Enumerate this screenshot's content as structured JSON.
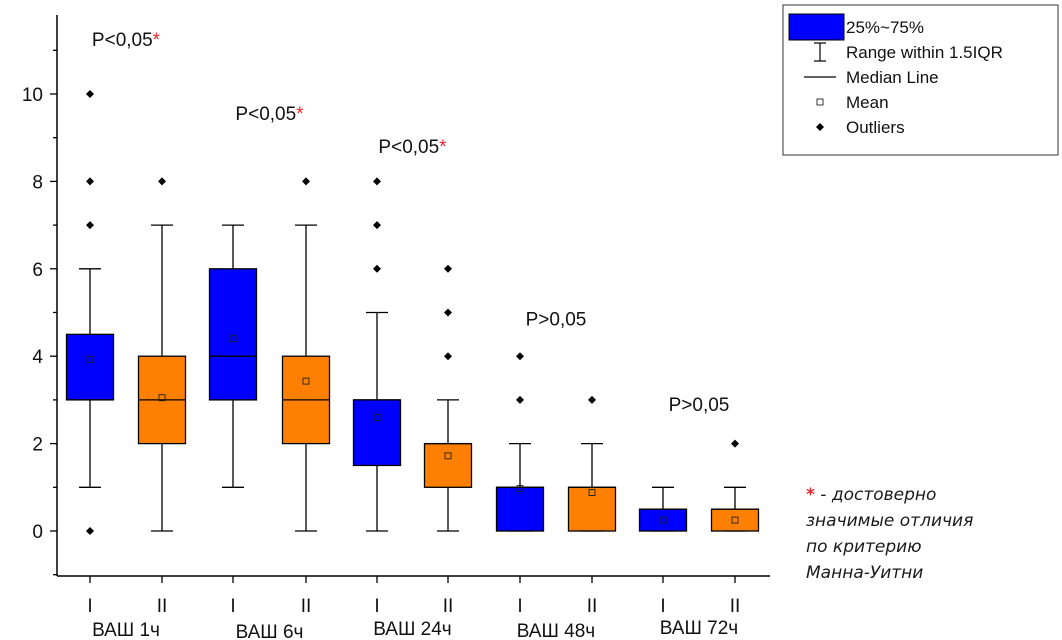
{
  "chart_data": {
    "type": "box",
    "ylim": [
      -1,
      11
    ],
    "yticks": [
      0,
      2,
      4,
      6,
      8,
      10
    ],
    "colors": {
      "I": "#0000ff",
      "II": "#ff8000"
    },
    "groups": [
      "ВАШ 1ч",
      "ВАШ 6ч",
      "ВАШ 24ч",
      "ВАШ 48ч",
      "ВАШ 72ч"
    ],
    "sub_labels": [
      "I",
      "II"
    ],
    "boxes": [
      {
        "group": 0,
        "sub": "I",
        "q1": 3,
        "median": 3,
        "q3": 4.5,
        "whisker_low": 1,
        "whisker_high": 6,
        "mean": 3.93,
        "outliers": [
          0,
          7,
          8,
          10
        ]
      },
      {
        "group": 0,
        "sub": "II",
        "q1": 2,
        "median": 3,
        "q3": 4,
        "whisker_low": 0,
        "whisker_high": 7,
        "mean": 3.05,
        "outliers": [
          8
        ]
      },
      {
        "group": 1,
        "sub": "I",
        "q1": 3,
        "median": 4,
        "q3": 6,
        "whisker_low": 1,
        "whisker_high": 7,
        "mean": 4.4,
        "outliers": []
      },
      {
        "group": 1,
        "sub": "II",
        "q1": 2,
        "median": 3,
        "q3": 4,
        "whisker_low": 0,
        "whisker_high": 7,
        "mean": 3.43,
        "outliers": [
          8
        ]
      },
      {
        "group": 2,
        "sub": "I",
        "q1": 1.5,
        "median": 3,
        "q3": 3,
        "whisker_low": 0,
        "whisker_high": 5,
        "mean": 2.6,
        "outliers": [
          6,
          7,
          8
        ]
      },
      {
        "group": 2,
        "sub": "II",
        "q1": 1,
        "median": 2,
        "q3": 2,
        "whisker_low": 0,
        "whisker_high": 3,
        "mean": 1.72,
        "outliers": [
          4,
          5,
          6
        ]
      },
      {
        "group": 3,
        "sub": "I",
        "q1": 0,
        "median": 1,
        "q3": 1,
        "whisker_low": 0,
        "whisker_high": 2,
        "mean": 0.97,
        "outliers": [
          3,
          4
        ]
      },
      {
        "group": 3,
        "sub": "II",
        "q1": 0,
        "median": 1,
        "q3": 1,
        "whisker_low": 0,
        "whisker_high": 2,
        "mean": 0.88,
        "outliers": [
          3
        ]
      },
      {
        "group": 4,
        "sub": "I",
        "q1": 0,
        "median": 0.5,
        "q3": 0.5,
        "whisker_low": 0,
        "whisker_high": 1,
        "mean": 0.25,
        "outliers": []
      },
      {
        "group": 4,
        "sub": "II",
        "q1": 0,
        "median": 0.5,
        "q3": 0.5,
        "whisker_low": 0,
        "whisker_high": 1,
        "mean": 0.25,
        "outliers": [
          2
        ]
      }
    ],
    "annotations": [
      {
        "group": 0,
        "text": "P<0,05",
        "star": "*",
        "y": 11.1
      },
      {
        "group": 1,
        "text": "P<0,05",
        "star": "*",
        "y": 9.4
      },
      {
        "group": 2,
        "text": "P<0,05",
        "star": "*",
        "y": 8.65
      },
      {
        "group": 3,
        "text": "P>0,05",
        "star": "",
        "y": 4.7
      },
      {
        "group": 4,
        "text": "P>0,05",
        "star": "",
        "y": 2.75
      }
    ],
    "legend": {
      "position": "top-right",
      "items": [
        {
          "symbol": "box",
          "label": "25%~75%"
        },
        {
          "symbol": "whisker",
          "label": "Range within 1.5IQR"
        },
        {
          "symbol": "line",
          "label": "Median Line"
        },
        {
          "symbol": "mean",
          "label": "Mean"
        },
        {
          "symbol": "outlier",
          "label": "Outliers"
        }
      ]
    }
  },
  "note": {
    "star": "*",
    "lines": [
      "- достоверно",
      "значимые отличия",
      "по критерию",
      "Манна-Уитни"
    ]
  }
}
